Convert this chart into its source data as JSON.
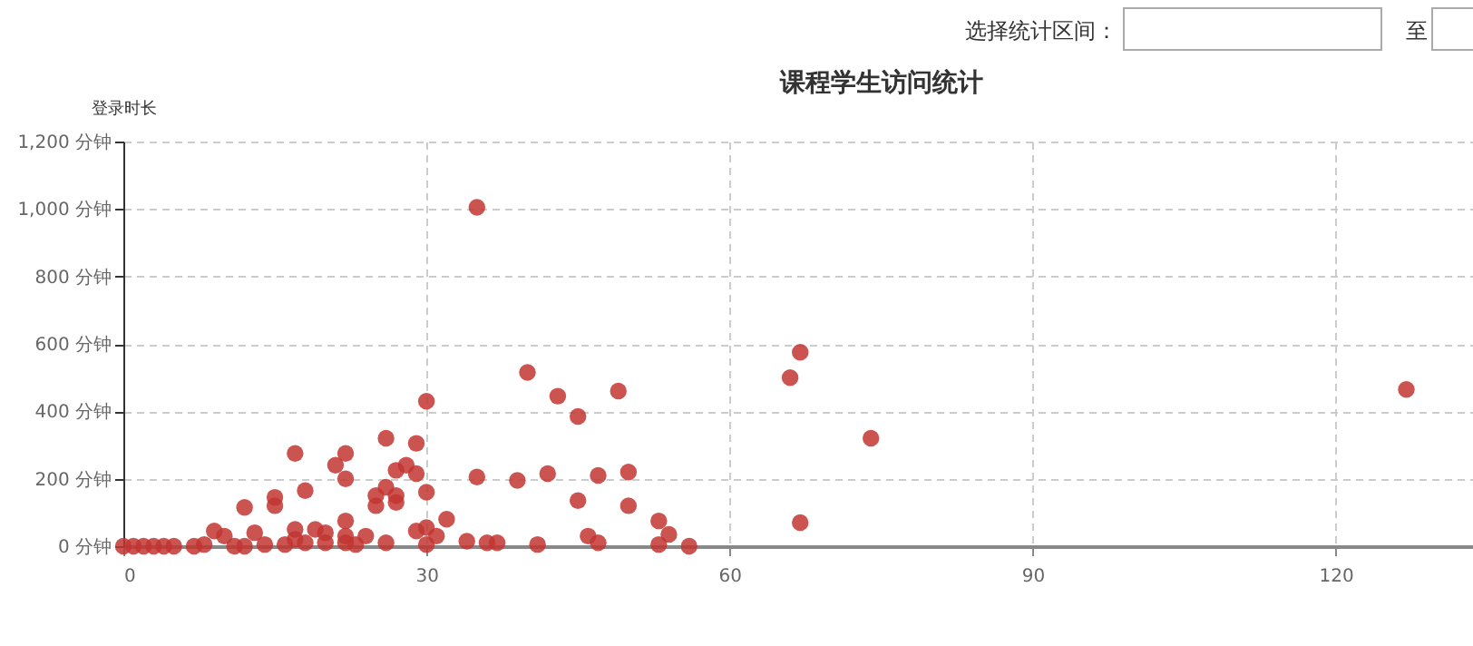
{
  "chart_data": {
    "type": "scatter",
    "title": "课程学生访问统计",
    "ylabel": "登录时长",
    "annotations": [
      "选择统计区间：",
      "至"
    ],
    "x": [
      0,
      1,
      2,
      3,
      4,
      5,
      7,
      8,
      9,
      10,
      11,
      12,
      12,
      13,
      14,
      15,
      15,
      16,
      17,
      17,
      17,
      18,
      18,
      19,
      20,
      20,
      21,
      22,
      22,
      22,
      22,
      22,
      23,
      24,
      25,
      25,
      26,
      26,
      26,
      27,
      27,
      27,
      28,
      29,
      29,
      29,
      30,
      30,
      30,
      30,
      31,
      32,
      34,
      35,
      35,
      36,
      37,
      39,
      40,
      41,
      42,
      43,
      45,
      45,
      46,
      47,
      47,
      49,
      50,
      50,
      53,
      53,
      54,
      56,
      66,
      67,
      67,
      74,
      127
    ],
    "values": [
      0,
      0,
      0,
      0,
      0,
      0,
      0,
      5,
      45,
      30,
      0,
      115,
      0,
      40,
      5,
      145,
      120,
      5,
      275,
      50,
      20,
      165,
      10,
      50,
      40,
      10,
      240,
      275,
      200,
      75,
      30,
      10,
      5,
      30,
      150,
      120,
      320,
      175,
      10,
      225,
      150,
      130,
      240,
      305,
      215,
      45,
      430,
      160,
      55,
      5,
      30,
      80,
      15,
      1005,
      205,
      10,
      10,
      195,
      515,
      5,
      215,
      445,
      385,
      135,
      30,
      210,
      10,
      460,
      220,
      120,
      75,
      5,
      35,
      0,
      500,
      575,
      70,
      320,
      465
    ],
    "color": "#c23531",
    "marker": "circle",
    "grid": true,
    "xlim": [
      0,
      133.6
    ],
    "xticks": [
      0,
      30,
      60,
      90,
      120
    ],
    "ylim": [
      0,
      1200
    ],
    "yticks": [
      {
        "value": 0,
        "label": "0 分钟"
      },
      {
        "value": 200,
        "label": "200 分钟"
      },
      {
        "value": 400,
        "label": "400 分钟"
      },
      {
        "value": 600,
        "label": "600 分钟"
      },
      {
        "value": 800,
        "label": "800 分钟"
      },
      {
        "value": 1000,
        "label": "1,000 分钟"
      },
      {
        "value": 1200,
        "label": "1,200 分钟"
      }
    ]
  }
}
